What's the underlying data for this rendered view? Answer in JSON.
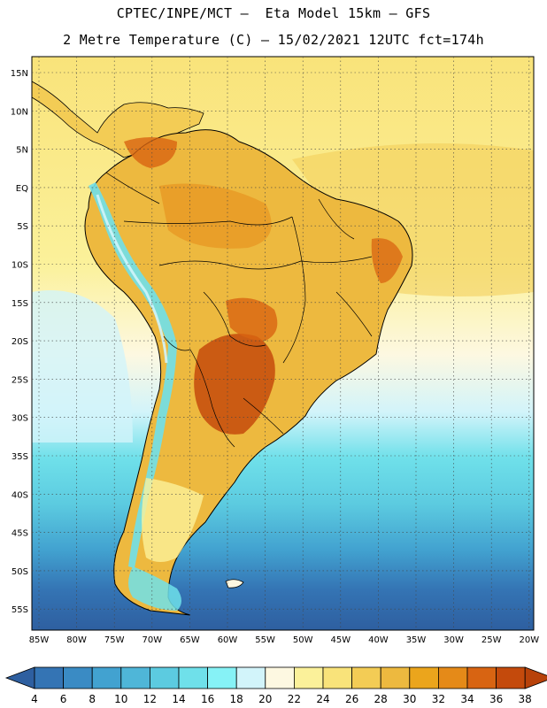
{
  "header": {
    "line1": "CPTEC/INPE/MCT –  Eta Model 15km – GFS",
    "line2": "2 Metre Temperature (C) – 15/02/2021 12UTC fct=174h"
  },
  "map": {
    "lat_ticks": [
      "15N",
      "10N",
      "5N",
      "EQ",
      "5S",
      "10S",
      "15S",
      "20S",
      "25S",
      "30S",
      "35S",
      "40S",
      "45S",
      "50S",
      "55S"
    ],
    "lon_ticks": [
      "85W",
      "80W",
      "75W",
      "70W",
      "65W",
      "60W",
      "55W",
      "50W",
      "45W",
      "40W",
      "35W",
      "30W",
      "25W",
      "20W"
    ],
    "lon_range_deg": [
      -85,
      -20
    ],
    "lat_range_deg": [
      -58,
      17
    ]
  },
  "colorbar": {
    "labels": [
      "4",
      "6",
      "8",
      "10",
      "12",
      "14",
      "16",
      "18",
      "20",
      "22",
      "24",
      "26",
      "28",
      "30",
      "32",
      "34",
      "36",
      "38"
    ],
    "colors": [
      "#2e5fa0",
      "#3474b4",
      "#3a8bc4",
      "#42a2d0",
      "#4fb6d8",
      "#5ccbe0",
      "#6fe0ea",
      "#86f2f6",
      "#d2f4fa",
      "#fdf8e1",
      "#fbf19a",
      "#f9e37a",
      "#f3cc55",
      "#edb93f",
      "#eba51c",
      "#e58a18",
      "#d86412",
      "#c44a0c",
      "#b8420a"
    ],
    "units": "C"
  }
}
